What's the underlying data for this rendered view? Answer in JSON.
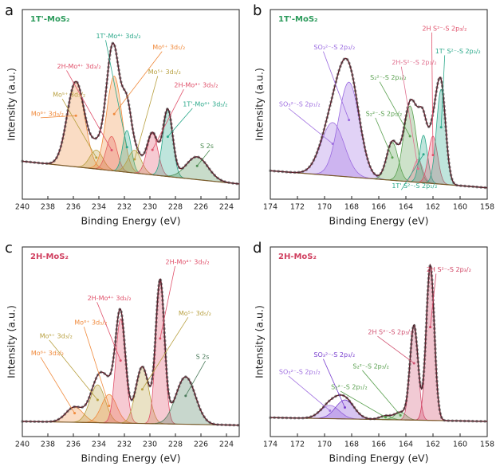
{
  "chart_data": [
    {
      "type": "xps",
      "panel": "a",
      "title": "1T'-MoS₂",
      "title_color": "#2a9a5a",
      "x_label": "Binding Energy (eV)",
      "y_label": "Intensity (a.u.)",
      "xlim": [
        240,
        223
      ],
      "xticks": [
        240,
        238,
        236,
        234,
        232,
        230,
        228,
        226,
        224
      ],
      "ylim": [
        0,
        100
      ],
      "baseline": [
        20,
        8
      ],
      "peaks": [
        {
          "name": "Mo⁶⁺ 3d₃/₂",
          "color": "#f08a3c",
          "center": 235.8,
          "height": 45,
          "fwhm": 1.6
        },
        {
          "name": "Mo⁵⁺ 3d₃/₂",
          "color": "#b8a040",
          "center": 234.2,
          "height": 10,
          "fwhm": 1.2
        },
        {
          "name": "2H-Mo⁴⁺ 3d₃/₂",
          "color": "#e0506a",
          "center": 233.0,
          "height": 18,
          "fwhm": 1.0
        },
        {
          "name": "Mo⁶⁺ 3d₅/₂",
          "color": "#f08a3c",
          "center": 232.8,
          "height": 50,
          "fwhm": 1.4
        },
        {
          "name": "1T'-Mo⁴⁺ 3d₃/₂",
          "color": "#2aa88a",
          "center": 231.8,
          "height": 22,
          "fwhm": 0.8
        },
        {
          "name": "Mo⁵⁺ 3d₅/₂",
          "color": "#b8a040",
          "center": 231.2,
          "height": 12,
          "fwhm": 1.2
        },
        {
          "name": "2H-Mo⁴⁺ 3d₅/₂",
          "color": "#e0506a",
          "center": 229.8,
          "height": 22,
          "fwhm": 1.0
        },
        {
          "name": "1T'-Mo⁴⁺ 3d₅/₂",
          "color": "#2aa88a",
          "center": 228.6,
          "height": 35,
          "fwhm": 0.9
        },
        {
          "name": "S 2s",
          "color": "#4a8a50",
          "center": 226.3,
          "height": 12,
          "fwhm": 2.0
        }
      ]
    },
    {
      "type": "xps",
      "panel": "b",
      "title": "1T'-MoS₂",
      "title_color": "#2a9a5a",
      "x_label": "Binding Energy (eV)",
      "y_label": "Intensity (a.u.)",
      "xlim": [
        174,
        158
      ],
      "xticks": [
        174,
        172,
        170,
        168,
        166,
        164,
        162,
        160,
        158
      ],
      "ylim": [
        0,
        100
      ],
      "baseline": [
        15,
        6
      ],
      "peaks": [
        {
          "name": "SO₃²⁻-S 2p₁/₂",
          "color": "#a070e0",
          "center": 169.4,
          "height": 28,
          "fwhm": 2.0
        },
        {
          "name": "SO₃²⁻-S 2p₃/₂",
          "color": "#9a6ae0",
          "center": 168.2,
          "height": 50,
          "fwhm": 1.8
        },
        {
          "name": "S₂²⁻-S 2p₁/₂",
          "color": "#5aa050",
          "center": 165.0,
          "height": 20,
          "fwhm": 1.0
        },
        {
          "name": "S₂²⁻-S 2p₃/₂",
          "color": "#5aa050",
          "center": 163.7,
          "height": 40,
          "fwhm": 1.1
        },
        {
          "name": "2H-S²⁻-S 2p₁/₂",
          "color": "#e07090",
          "center": 163.1,
          "height": 12,
          "fwhm": 0.8
        },
        {
          "name": "1T' S²⁻-S 2p₁/₂",
          "color": "#2aa88a",
          "center": 162.7,
          "height": 25,
          "fwhm": 0.7
        },
        {
          "name": "2H S²⁻-S 2p₃/₂",
          "color": "#e0506a",
          "center": 162.0,
          "height": 25,
          "fwhm": 0.8
        },
        {
          "name": "1T' S²⁻-S 2p₃/₂",
          "color": "#2aa88a",
          "center": 161.4,
          "height": 50,
          "fwhm": 0.8
        }
      ]
    },
    {
      "type": "xps",
      "panel": "c",
      "title": "2H-MoS₂",
      "title_color": "#d04060",
      "x_label": "Binding Energy (eV)",
      "y_label": "Intensity (a.u.)",
      "xlim": [
        240,
        223
      ],
      "xticks": [
        240,
        238,
        236,
        234,
        232,
        230,
        228,
        226,
        224
      ],
      "ylim": [
        0,
        100
      ],
      "baseline": [
        8,
        6
      ],
      "peaks": [
        {
          "name": "Mo⁶⁺ 3d₃/₂",
          "color": "#f08a3c",
          "center": 235.9,
          "height": 8,
          "fwhm": 1.6
        },
        {
          "name": "Mo⁵⁺ 3d₃/₂",
          "color": "#b8a040",
          "center": 234.1,
          "height": 20,
          "fwhm": 1.4
        },
        {
          "name": "Mo⁶⁺ 3d₅/₂",
          "color": "#f08a3c",
          "center": 233.2,
          "height": 15,
          "fwhm": 1.4
        },
        {
          "name": "2H-Mo⁴⁺ 3d₃/₂",
          "color": "#e0506a",
          "center": 232.3,
          "height": 55,
          "fwhm": 0.9
        },
        {
          "name": "Mo⁵⁺ 3d₅/₂",
          "color": "#b8a040",
          "center": 230.6,
          "height": 30,
          "fwhm": 1.2
        },
        {
          "name": "2H-Mo⁴⁺ 3d₅/₂",
          "color": "#e0506a",
          "center": 229.2,
          "height": 75,
          "fwhm": 0.8
        },
        {
          "name": "S 2s",
          "color": "#4a7a5a",
          "center": 227.2,
          "height": 25,
          "fwhm": 1.8
        }
      ]
    },
    {
      "type": "xps",
      "panel": "d",
      "title": "2H-MoS₂",
      "title_color": "#d04060",
      "x_label": "Binding Energy (eV)",
      "y_label": "Intensity (a.u.)",
      "xlim": [
        174,
        158
      ],
      "xticks": [
        174,
        172,
        170,
        168,
        166,
        164,
        162,
        160,
        158
      ],
      "ylim": [
        0,
        100
      ],
      "baseline": [
        10,
        8
      ],
      "peaks": [
        {
          "name": "SO₃²⁻-S 2p₁/₂",
          "color": "#a070e0",
          "center": 169.6,
          "height": 7,
          "fwhm": 1.6
        },
        {
          "name": "SO₃²⁻-S 2p₃/₂",
          "color": "#7a40d0",
          "center": 168.5,
          "height": 10,
          "fwhm": 1.6
        },
        {
          "name": "S₂²⁻-S 2p₁/₂",
          "color": "#5aa050",
          "center": 165.5,
          "height": 2,
          "fwhm": 1.0
        },
        {
          "name": "S₂²⁻-S 2p₃/₂",
          "color": "#5aa050",
          "center": 164.4,
          "height": 4,
          "fwhm": 1.0
        },
        {
          "name": "2H S²⁻-S 2p₃/₂",
          "color": "#d05070",
          "center": 163.4,
          "height": 50,
          "fwhm": 0.7
        },
        {
          "name": "2H S²⁻-S 2p₃/₂",
          "color": "#d04060",
          "center": 162.2,
          "height": 82,
          "fwhm": 0.7
        }
      ]
    }
  ]
}
